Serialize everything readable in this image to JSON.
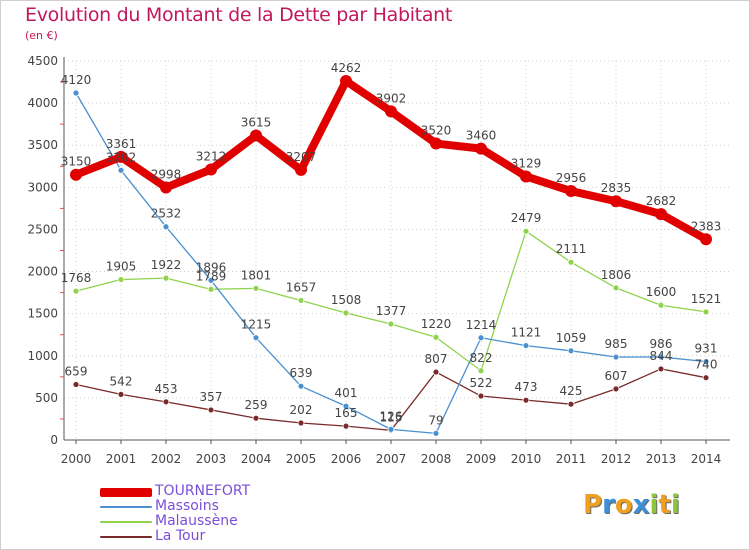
{
  "chart_data": {
    "type": "line",
    "title": "Evolution du Montant de la Dette par Habitant",
    "subtitle": "(en €)",
    "ylim": [
      0,
      4500
    ],
    "yticks": [
      0,
      500,
      1000,
      1500,
      2000,
      2500,
      3000,
      3500,
      4000,
      4500
    ],
    "categories": [
      "2000",
      "2001",
      "2002",
      "2003",
      "2004",
      "2005",
      "2006",
      "2007",
      "2008",
      "2009",
      "2010",
      "2011",
      "2012",
      "2013",
      "2014"
    ],
    "grid": true,
    "legend_position": "bottom-left",
    "series": [
      {
        "name": "TOURNEFORT",
        "color": "#e00000",
        "values": [
          3150,
          3361,
          2998,
          3212,
          3615,
          3207,
          4262,
          3902,
          3520,
          3460,
          3129,
          2956,
          2835,
          2682,
          2383
        ]
      },
      {
        "name": "Massoins",
        "color": "#4a8fd0",
        "values": [
          4120,
          3202,
          2532,
          1896,
          1215,
          639,
          401,
          126,
          79,
          1214,
          1121,
          1059,
          985,
          986,
          931
        ]
      },
      {
        "name": "Malaussène",
        "color": "#8fd34c",
        "values": [
          1768,
          1905,
          1922,
          1789,
          1801,
          1657,
          1508,
          1377,
          1220,
          822,
          2479,
          2111,
          1806,
          1600,
          1521
        ]
      },
      {
        "name": "La Tour",
        "color": "#7a2a2a",
        "values": [
          659,
          542,
          453,
          357,
          259,
          202,
          165,
          115,
          807,
          522,
          473,
          425,
          607,
          844,
          740
        ]
      }
    ]
  },
  "logo": {
    "letters": [
      "P",
      "r",
      "o",
      "x",
      "i",
      "t",
      "i"
    ],
    "colors": [
      "#f0a020",
      "#3d8fd8",
      "#f0a020",
      "#3d8fd8",
      "#8cc63f",
      "#f0a020",
      "#8cc63f"
    ]
  }
}
